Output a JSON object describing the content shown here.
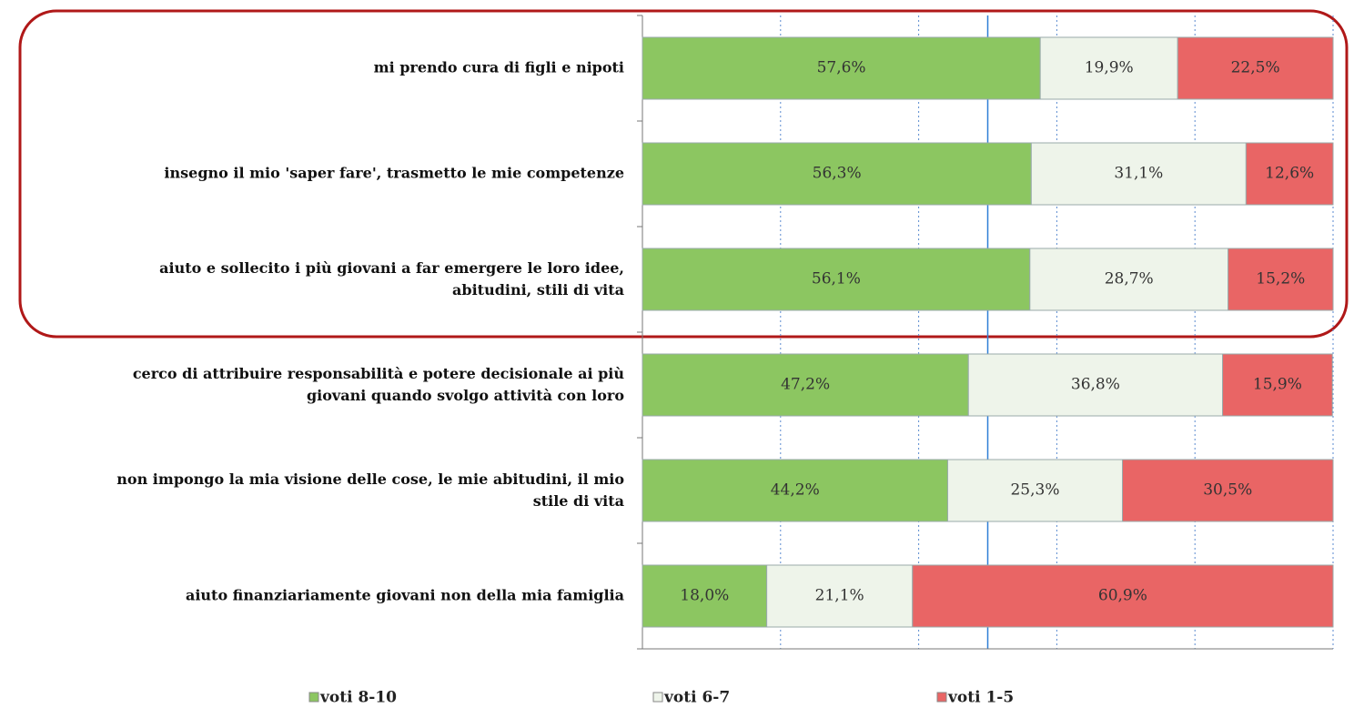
{
  "chart_data": {
    "type": "stacked_barh",
    "categories": [
      "mi prendo cura di figli e nipoti",
      "insegno il mio 'saper fare', trasmetto le mie competenze",
      "aiuto e sollecito i più giovani a far emergere le loro  idee,\nabitudini, stili di vita",
      "cerco di attribuire responsabilità e potere decisionale ai più\ngiovani quando svolgo attività con loro",
      "non impongo la mia visione delle cose, le mie abitudini, il mio\nstile di vita",
      "aiuto finanziariamente giovani non della mia famiglia"
    ],
    "series": [
      {
        "name": "voti 8-10",
        "color": "#8cc661",
        "values": [
          57.6,
          56.3,
          56.1,
          47.2,
          44.2,
          18.0
        ],
        "value_labels": [
          "57,6%",
          "56,3%",
          "56,1%",
          "47,2%",
          "44,2%",
          "18,0%"
        ]
      },
      {
        "name": "voti 6-7",
        "color": "#eef4ea",
        "values": [
          19.9,
          31.1,
          28.7,
          36.8,
          25.3,
          21.1
        ],
        "value_labels": [
          "19,9%",
          "31,1%",
          "28,7%",
          "36,8%",
          "25,3%",
          "21,1%"
        ]
      },
      {
        "name": "voti 1-5",
        "color": "#e96565",
        "values": [
          22.5,
          12.6,
          15.2,
          15.9,
          30.5,
          60.9
        ],
        "value_labels": [
          "22,5%",
          "12,6%",
          "15,2%",
          "15,9%",
          "30,5%",
          "60,9%"
        ]
      }
    ],
    "xlim": [
      0,
      100
    ],
    "xticks": [
      0,
      20,
      40,
      60,
      80,
      100
    ],
    "reference_x": 50,
    "grid": true,
    "legend": "bottom"
  }
}
